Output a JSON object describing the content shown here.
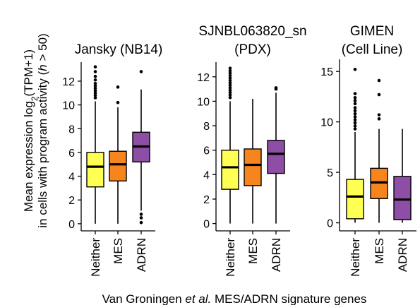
{
  "figure": {
    "ylabel_line1_pre": "Mean expression log",
    "ylabel_line1_sub": "2",
    "ylabel_line1_post": "(TPM+1)",
    "ylabel_line2_pre": "in cells with program activity (",
    "ylabel_line2_ital": "h",
    "ylabel_line2_post": " > 50)",
    "caption_pre": "Van Groningen ",
    "caption_ital": "et al.",
    "caption_post": " MES/ADRN signature genes"
  },
  "colors": {
    "Neither": "#ffff54",
    "MES": "#f7851e",
    "ADRN": "#8e4ea5"
  },
  "chart_data": [
    {
      "type": "box",
      "title_lines": [
        "Jansky (NB14)"
      ],
      "categories": [
        "Neither",
        "MES",
        "ADRN"
      ],
      "yticks": [
        0,
        2,
        4,
        6,
        8,
        10,
        12
      ],
      "ylim": [
        -0.6,
        13.6
      ],
      "boxes": [
        {
          "category": "Neither",
          "whisker_low": 0.0,
          "q1": 3.1,
          "median": 4.8,
          "q3": 6.0,
          "whisker_high": 10.3,
          "outliers": [
            10.6,
            10.8,
            11.0,
            11.2,
            11.4,
            11.6,
            11.8,
            12.1,
            12.4,
            12.8,
            13.2
          ]
        },
        {
          "category": "MES",
          "whisker_low": 0.0,
          "q1": 3.6,
          "median": 5.0,
          "q3": 6.1,
          "whisker_high": 9.8,
          "outliers": [
            10.2,
            11.5
          ]
        },
        {
          "category": "ADRN",
          "whisker_low": 1.1,
          "q1": 5.2,
          "median": 6.5,
          "q3": 7.7,
          "whisker_high": 11.3,
          "outliers": [
            0.8,
            0.5,
            0.1,
            12.8
          ]
        }
      ]
    },
    {
      "type": "box",
      "title_lines": [
        "SJNBL063820_sn",
        "(PDX)"
      ],
      "categories": [
        "Neither",
        "MES",
        "ADRN"
      ],
      "yticks": [
        0,
        2,
        4,
        6,
        8,
        10,
        12
      ],
      "ylim": [
        -0.6,
        13.2
      ],
      "boxes": [
        {
          "category": "Neither",
          "whisker_low": 0.0,
          "q1": 2.8,
          "median": 4.6,
          "q3": 6.0,
          "whisker_high": 10.0,
          "outliers": [
            10.3,
            10.5,
            10.7,
            10.9,
            11.1,
            11.3,
            11.5,
            11.7,
            11.9,
            12.1,
            12.3,
            12.5,
            12.7
          ]
        },
        {
          "category": "MES",
          "whisker_low": 0.0,
          "q1": 3.1,
          "median": 4.8,
          "q3": 6.1,
          "whisker_high": 10.2,
          "outliers": []
        },
        {
          "category": "ADRN",
          "whisker_low": 0.0,
          "q1": 4.1,
          "median": 5.7,
          "q3": 6.8,
          "whisker_high": 10.7,
          "outliers": [
            11.0,
            11.1
          ]
        }
      ]
    },
    {
      "type": "box",
      "title_lines": [
        "GIMEN",
        "(Cell Line)"
      ],
      "categories": [
        "Neither",
        "MES",
        "ADRN"
      ],
      "yticks": [
        0,
        5,
        10,
        15
      ],
      "ylim": [
        -0.8,
        16.2
      ],
      "boxes": [
        {
          "category": "Neither",
          "whisker_low": 0.0,
          "q1": 0.4,
          "median": 2.6,
          "q3": 4.3,
          "whisker_high": 9.0,
          "outliers": [
            9.3,
            9.6,
            9.9,
            10.2,
            10.5,
            10.8,
            11.1,
            11.4,
            11.8,
            12.1,
            12.4,
            12.8,
            15.2
          ]
        },
        {
          "category": "MES",
          "whisker_low": 0.0,
          "q1": 2.4,
          "median": 4.0,
          "q3": 5.4,
          "whisker_high": 9.3,
          "outliers": [
            10.3,
            10.7,
            12.7,
            14.1
          ]
        },
        {
          "category": "ADRN",
          "whisker_low": 0.0,
          "q1": 0.3,
          "median": 2.3,
          "q3": 4.6,
          "whisker_high": 9.3,
          "outliers": []
        }
      ]
    }
  ]
}
